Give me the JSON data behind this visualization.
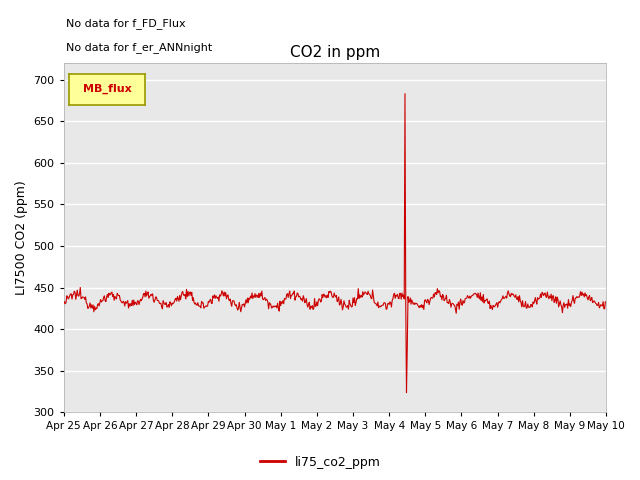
{
  "title": "CO2 in ppm",
  "ylabel": "LI7500 CO2 (ppm)",
  "ylim": [
    300,
    720
  ],
  "yticks": [
    300,
    350,
    400,
    450,
    500,
    550,
    600,
    650,
    700
  ],
  "line_color": "#cc0000",
  "line_width": 0.8,
  "legend_label": "li75_co2_ppm",
  "legend_box_color": "#ffff99",
  "legend_box_edge": "#999900",
  "mb_flux_label": "MB_flux",
  "annotation1": "No data for f_FD_Flux",
  "annotation2": "No data for f_er_ANNnight",
  "plot_bg_color": "#e8e8e8",
  "fig_bg_color": "#ffffff",
  "spike_peak_high": 685,
  "spike_peak_low": 322,
  "baseline": 435
}
